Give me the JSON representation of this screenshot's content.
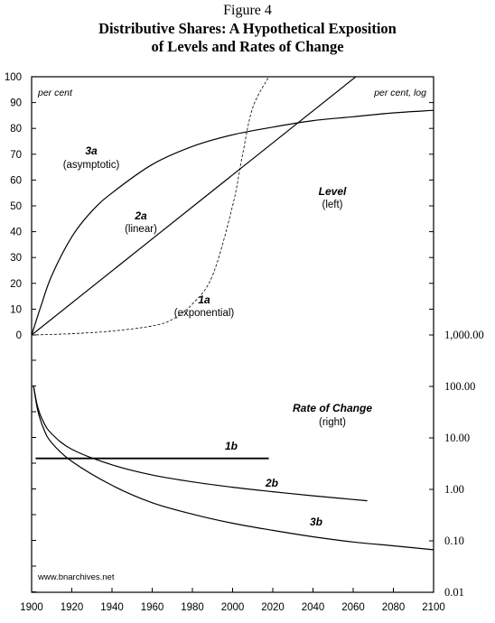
{
  "figure": {
    "label": "Figure 4",
    "title_line1": "Distributive Shares: A Hypothetical Exposition",
    "title_line2": "of Levels and Rates of Change"
  },
  "axes": {
    "left_unit": "per cent",
    "right_unit": "per cent, log",
    "left_ticks": [
      "100",
      "90",
      "80",
      "70",
      "60",
      "50",
      "40",
      "30",
      "20",
      "10",
      "0"
    ],
    "right_ticks": [
      "1,000.00",
      "100.00",
      "10.00",
      "1.00",
      "0.10",
      "0.01"
    ],
    "x_ticks": [
      "1900",
      "1920",
      "1940",
      "1960",
      "1980",
      "2000",
      "2020",
      "2040",
      "2060",
      "2080",
      "2100"
    ]
  },
  "annotations": {
    "level_title": "Level",
    "level_sub": "(left)",
    "rate_title": "Rate of Change",
    "rate_sub": "(right)",
    "c3a": "3a",
    "c3a_sub": "(asymptotic)",
    "c2a": "2a",
    "c2a_sub": "(linear)",
    "c1a": "1a",
    "c1a_sub": "(exponential)",
    "c1b": "1b",
    "c2b": "2b",
    "c3b": "3b",
    "credit": "www.bnarchives.net"
  },
  "chart_data": {
    "type": "line",
    "title": "Distributive Shares: A Hypothetical Exposition of Levels and Rates of Change",
    "xlim": [
      1900,
      2100
    ],
    "left_axis": {
      "label": "per cent",
      "ylim": [
        0,
        100
      ],
      "scale": "linear"
    },
    "right_axis": {
      "label": "per cent, log",
      "ylim": [
        0.01,
        1000
      ],
      "scale": "log"
    },
    "grid": false,
    "series": [
      {
        "name": "1a (exponential)",
        "axis": "left",
        "style": "dashed",
        "x": [
          1900,
          1920,
          1940,
          1960,
          1970,
          1980,
          1990,
          2000,
          2005,
          2010,
          2018
        ],
        "y": [
          0,
          0.5,
          1.5,
          3.5,
          6,
          12,
          23,
          50,
          70,
          88,
          100
        ]
      },
      {
        "name": "2a (linear)",
        "axis": "left",
        "style": "solid",
        "x": [
          1900,
          2000,
          2100
        ],
        "y": [
          0,
          62,
          124
        ]
      },
      {
        "name": "3a (asymptotic)",
        "axis": "left",
        "style": "solid",
        "x": [
          1900,
          1905,
          1910,
          1920,
          1930,
          1940,
          1960,
          1980,
          2000,
          2020,
          2040,
          2060,
          2080,
          2100
        ],
        "y": [
          0,
          12,
          23,
          38,
          48,
          55,
          66,
          73,
          77.5,
          80.5,
          83,
          84.5,
          86,
          87
        ]
      },
      {
        "name": "1b",
        "axis": "right",
        "style": "solid",
        "x": [
          1902,
          2018
        ],
        "y": [
          4,
          4
        ]
      },
      {
        "name": "2b",
        "axis": "right",
        "style": "solid",
        "x": [
          1901,
          1903,
          1906,
          1910,
          1920,
          1940,
          1960,
          1980,
          2000,
          2020,
          2040,
          2067
        ],
        "y": [
          100,
          40,
          20,
          12,
          6,
          3,
          1.9,
          1.4,
          1.1,
          0.9,
          0.75,
          0.6
        ]
      },
      {
        "name": "3b",
        "axis": "right",
        "style": "solid",
        "x": [
          1901,
          1903,
          1906,
          1910,
          1920,
          1940,
          1960,
          1980,
          2000,
          2020,
          2040,
          2060,
          2080,
          2100
        ],
        "y": [
          100,
          35,
          15,
          8,
          3.5,
          1.2,
          0.55,
          0.33,
          0.22,
          0.16,
          0.12,
          0.095,
          0.08,
          0.067
        ]
      }
    ]
  }
}
